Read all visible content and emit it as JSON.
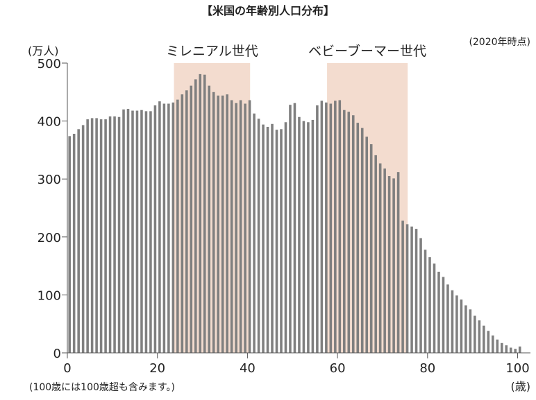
{
  "chart_data": {
    "type": "bar",
    "title": "【米国の年齢別人口分布】",
    "subtitle": "(2020年時点)",
    "ylabel": "(万人)",
    "xlabel": "(歳)",
    "footnote": "(100歳には100歳超も含みます。)",
    "xlim": [
      0,
      101
    ],
    "ylim": [
      0,
      500
    ],
    "xticks": [
      0,
      20,
      40,
      60,
      80,
      100
    ],
    "yticks": [
      0,
      100,
      200,
      300,
      400,
      500
    ],
    "bar_color": "#7f7f7f",
    "highlight_color": "#f3dccf",
    "highlights": [
      {
        "label": "ミレニアル世代",
        "from_age": 23.5,
        "to_age": 40.5
      },
      {
        "label": "ベビーブーマー世代",
        "from_age": 57.5,
        "to_age": 75.5
      }
    ],
    "x": [
      0,
      1,
      2,
      3,
      4,
      5,
      6,
      7,
      8,
      9,
      10,
      11,
      12,
      13,
      14,
      15,
      16,
      17,
      18,
      19,
      20,
      21,
      22,
      23,
      24,
      25,
      26,
      27,
      28,
      29,
      30,
      31,
      32,
      33,
      34,
      35,
      36,
      37,
      38,
      39,
      40,
      41,
      42,
      43,
      44,
      45,
      46,
      47,
      48,
      49,
      50,
      51,
      52,
      53,
      54,
      55,
      56,
      57,
      58,
      59,
      60,
      61,
      62,
      63,
      64,
      65,
      66,
      67,
      68,
      69,
      70,
      71,
      72,
      73,
      74,
      75,
      76,
      77,
      78,
      79,
      80,
      81,
      82,
      83,
      84,
      85,
      86,
      87,
      88,
      89,
      90,
      91,
      92,
      93,
      94,
      95,
      96,
      97,
      98,
      99,
      100
    ],
    "values": [
      374,
      378,
      386,
      393,
      403,
      405,
      405,
      403,
      403,
      408,
      408,
      407,
      420,
      421,
      418,
      418,
      419,
      417,
      417,
      427,
      434,
      430,
      430,
      432,
      437,
      446,
      453,
      461,
      472,
      481,
      480,
      461,
      450,
      444,
      444,
      446,
      436,
      431,
      436,
      430,
      436,
      413,
      404,
      394,
      390,
      395,
      385,
      386,
      398,
      428,
      431,
      407,
      400,
      398,
      402,
      427,
      435,
      432,
      430,
      435,
      436,
      419,
      416,
      410,
      397,
      388,
      373,
      360,
      341,
      327,
      318,
      305,
      301,
      312,
      228,
      222,
      218,
      214,
      198,
      178,
      165,
      154,
      140,
      131,
      118,
      108,
      99,
      92,
      82,
      75,
      64,
      56,
      47,
      38,
      30,
      23,
      17,
      13,
      9,
      7,
      11
    ]
  }
}
